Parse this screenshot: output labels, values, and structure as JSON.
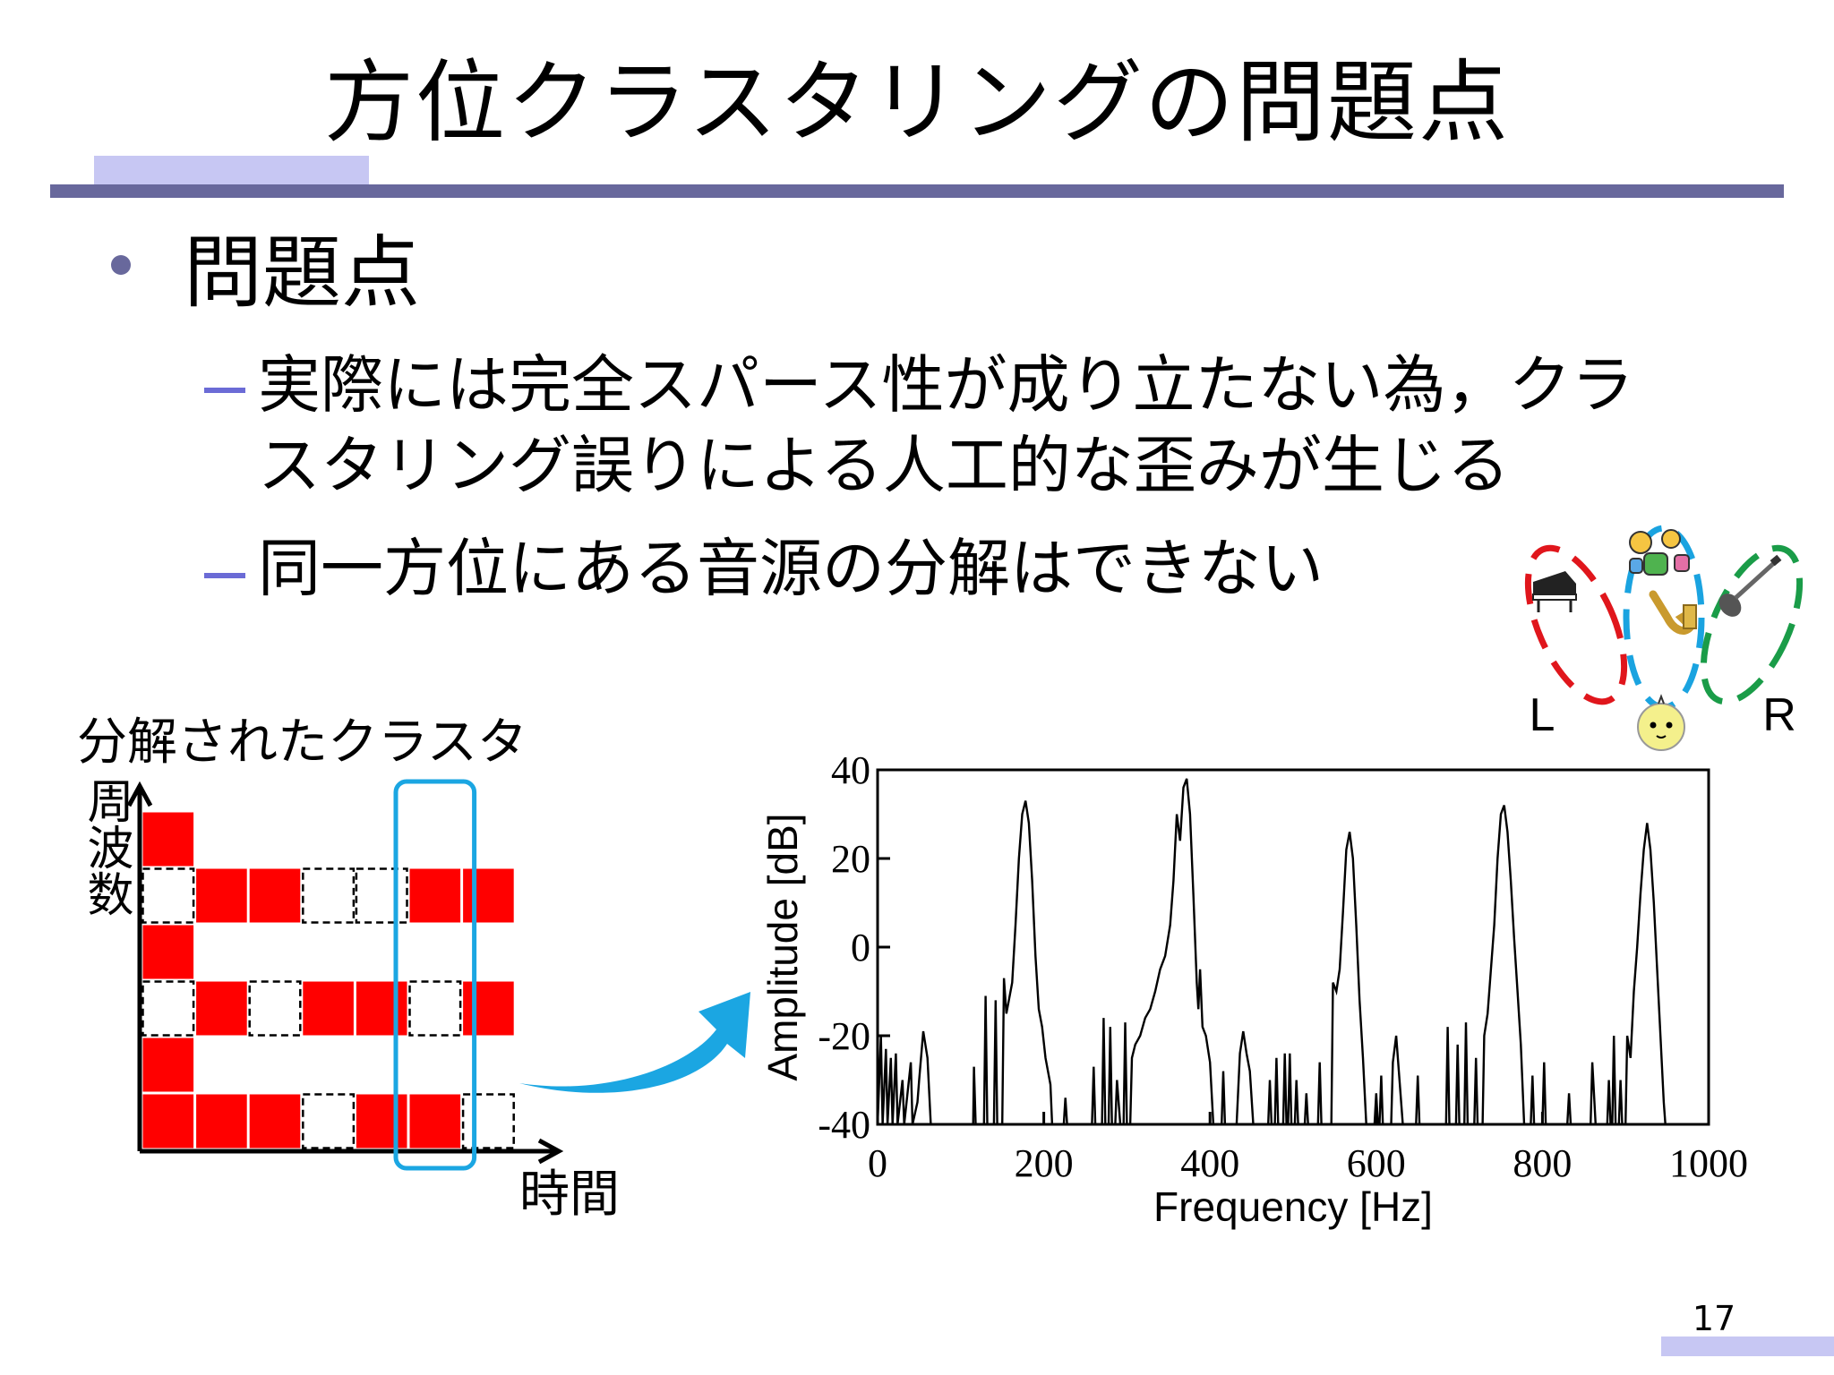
{
  "slide": {
    "title": "方位クラスタリングの問題点",
    "bullet": "問題点",
    "sub_items": [
      {
        "line1": "実際には完全スパース性が成り立たない為，クラ",
        "line2": "スタリング誤りによる人工的な歪みが生じる"
      },
      {
        "line1": "同一方位にある音源の分解はできない"
      }
    ],
    "page_number": "17"
  },
  "cluster_figure": {
    "title": "分解されたクラスタ",
    "y_label": "周波数",
    "x_label": "時間",
    "colors": {
      "filled": "#ff0000",
      "empty_border": "#000000",
      "highlight": "#1ba6e2"
    },
    "columns": 7,
    "rows": [
      [
        1,
        0,
        0,
        0,
        0,
        0,
        0
      ],
      [
        2,
        1,
        1,
        2,
        2,
        1,
        1
      ],
      [
        1,
        0,
        0,
        0,
        0,
        0,
        0
      ],
      [
        2,
        1,
        2,
        1,
        1,
        2,
        1
      ],
      [
        1,
        0,
        0,
        0,
        0,
        0,
        0
      ],
      [
        1,
        1,
        1,
        2,
        1,
        1,
        2
      ]
    ],
    "highlight_column": 5
  },
  "arrow": {
    "color": "#1ba6e2"
  },
  "instruments_figure": {
    "left_label": "L",
    "right_label": "R",
    "icons": [
      "piano-icon",
      "drums-icon",
      "saxophone-icon",
      "guitar-icon",
      "listener-icon"
    ],
    "colors": {
      "left": "#e0161c",
      "center": "#1aa3e0",
      "right": "#1a9c48",
      "listener": "#f4f08c"
    }
  },
  "chart_data": {
    "type": "line",
    "title": "",
    "xlabel": "Frequency [Hz]",
    "ylabel": "Amplitude [dB]",
    "xlim": [
      0,
      1000
    ],
    "ylim": [
      -40,
      40
    ],
    "xticks": [
      "0",
      "200",
      "400",
      "600",
      "800",
      "1000"
    ],
    "yticks": [
      "40",
      "20",
      "0",
      "-20",
      "-40"
    ],
    "grid": false,
    "series": [
      {
        "values": [
          {
            "x": 0,
            "y": -40
          },
          {
            "x": 4,
            "y": -20
          },
          {
            "x": 6,
            "y": -40
          },
          {
            "x": 10,
            "y": -23
          },
          {
            "x": 12,
            "y": -40
          },
          {
            "x": 16,
            "y": -25
          },
          {
            "x": 18,
            "y": -40
          },
          {
            "x": 22,
            "y": -24
          },
          {
            "x": 24,
            "y": -40
          },
          {
            "x": 30,
            "y": -30
          },
          {
            "x": 32,
            "y": -40
          },
          {
            "x": 40,
            "y": -26
          },
          {
            "x": 42,
            "y": -40
          },
          {
            "x": 48,
            "y": -35
          },
          {
            "x": 50,
            "y": -30
          },
          {
            "x": 55,
            "y": -19
          },
          {
            "x": 60,
            "y": -25
          },
          {
            "x": 64,
            "y": -40
          },
          {
            "x": 115,
            "y": -40
          },
          {
            "x": 116,
            "y": -27
          },
          {
            "x": 118,
            "y": -40
          },
          {
            "x": 128,
            "y": -40
          },
          {
            "x": 130,
            "y": -11
          },
          {
            "x": 132,
            "y": -40
          },
          {
            "x": 140,
            "y": -40
          },
          {
            "x": 142,
            "y": -12
          },
          {
            "x": 144,
            "y": -40
          },
          {
            "x": 150,
            "y": -40
          },
          {
            "x": 152,
            "y": -7
          },
          {
            "x": 155,
            "y": -15
          },
          {
            "x": 162,
            "y": -8
          },
          {
            "x": 166,
            "y": 5
          },
          {
            "x": 170,
            "y": 20
          },
          {
            "x": 174,
            "y": 30
          },
          {
            "x": 178,
            "y": 33
          },
          {
            "x": 182,
            "y": 28
          },
          {
            "x": 186,
            "y": 15
          },
          {
            "x": 190,
            "y": -2
          },
          {
            "x": 194,
            "y": -14
          },
          {
            "x": 198,
            "y": -18
          },
          {
            "x": 202,
            "y": -25
          },
          {
            "x": 208,
            "y": -31
          },
          {
            "x": 210,
            "y": -40
          },
          {
            "x": 224,
            "y": -40
          },
          {
            "x": 226,
            "y": -34
          },
          {
            "x": 228,
            "y": -40
          },
          {
            "x": 258,
            "y": -40
          },
          {
            "x": 260,
            "y": -27
          },
          {
            "x": 262,
            "y": -40
          },
          {
            "x": 270,
            "y": -40
          },
          {
            "x": 272,
            "y": -16
          },
          {
            "x": 274,
            "y": -40
          },
          {
            "x": 278,
            "y": -40
          },
          {
            "x": 280,
            "y": -18
          },
          {
            "x": 282,
            "y": -40
          },
          {
            "x": 286,
            "y": -40
          },
          {
            "x": 288,
            "y": -30
          },
          {
            "x": 292,
            "y": -40
          },
          {
            "x": 296,
            "y": -40
          },
          {
            "x": 298,
            "y": -17
          },
          {
            "x": 300,
            "y": -40
          },
          {
            "x": 304,
            "y": -40
          },
          {
            "x": 306,
            "y": -25
          },
          {
            "x": 310,
            "y": -22
          },
          {
            "x": 316,
            "y": -20
          },
          {
            "x": 322,
            "y": -16
          },
          {
            "x": 328,
            "y": -14
          },
          {
            "x": 334,
            "y": -10
          },
          {
            "x": 340,
            "y": -5
          },
          {
            "x": 346,
            "y": -2
          },
          {
            "x": 352,
            "y": 5
          },
          {
            "x": 356,
            "y": 15
          },
          {
            "x": 360,
            "y": 30
          },
          {
            "x": 364,
            "y": 24
          },
          {
            "x": 368,
            "y": 36
          },
          {
            "x": 372,
            "y": 38
          },
          {
            "x": 376,
            "y": 30
          },
          {
            "x": 380,
            "y": 12
          },
          {
            "x": 384,
            "y": -8
          },
          {
            "x": 386,
            "y": -14
          },
          {
            "x": 388,
            "y": -5
          },
          {
            "x": 391,
            "y": -18
          },
          {
            "x": 395,
            "y": -20
          },
          {
            "x": 400,
            "y": -26
          },
          {
            "x": 404,
            "y": -40
          },
          {
            "x": 414,
            "y": -40
          },
          {
            "x": 416,
            "y": -28
          },
          {
            "x": 418,
            "y": -40
          },
          {
            "x": 432,
            "y": -40
          },
          {
            "x": 436,
            "y": -24
          },
          {
            "x": 440,
            "y": -19
          },
          {
            "x": 444,
            "y": -24
          },
          {
            "x": 448,
            "y": -28
          },
          {
            "x": 452,
            "y": -40
          },
          {
            "x": 470,
            "y": -40
          },
          {
            "x": 472,
            "y": -30
          },
          {
            "x": 474,
            "y": -40
          },
          {
            "x": 478,
            "y": -40
          },
          {
            "x": 480,
            "y": -25
          },
          {
            "x": 482,
            "y": -40
          },
          {
            "x": 488,
            "y": -40
          },
          {
            "x": 490,
            "y": -24
          },
          {
            "x": 492,
            "y": -40
          },
          {
            "x": 494,
            "y": -40
          },
          {
            "x": 496,
            "y": -24
          },
          {
            "x": 498,
            "y": -40
          },
          {
            "x": 502,
            "y": -40
          },
          {
            "x": 504,
            "y": -30
          },
          {
            "x": 506,
            "y": -40
          },
          {
            "x": 514,
            "y": -40
          },
          {
            "x": 516,
            "y": -33
          },
          {
            "x": 518,
            "y": -40
          },
          {
            "x": 530,
            "y": -40
          },
          {
            "x": 532,
            "y": -26
          },
          {
            "x": 534,
            "y": -40
          },
          {
            "x": 546,
            "y": -40
          },
          {
            "x": 548,
            "y": -8
          },
          {
            "x": 552,
            "y": -10
          },
          {
            "x": 556,
            "y": -5
          },
          {
            "x": 560,
            "y": 8
          },
          {
            "x": 564,
            "y": 22
          },
          {
            "x": 568,
            "y": 26
          },
          {
            "x": 572,
            "y": 20
          },
          {
            "x": 576,
            "y": 5
          },
          {
            "x": 580,
            "y": -12
          },
          {
            "x": 584,
            "y": -25
          },
          {
            "x": 588,
            "y": -40
          },
          {
            "x": 598,
            "y": -40
          },
          {
            "x": 600,
            "y": -33
          },
          {
            "x": 602,
            "y": -40
          },
          {
            "x": 604,
            "y": -40
          },
          {
            "x": 606,
            "y": -29
          },
          {
            "x": 608,
            "y": -40
          },
          {
            "x": 618,
            "y": -40
          },
          {
            "x": 620,
            "y": -26
          },
          {
            "x": 624,
            "y": -20
          },
          {
            "x": 628,
            "y": -30
          },
          {
            "x": 632,
            "y": -40
          },
          {
            "x": 648,
            "y": -40
          },
          {
            "x": 650,
            "y": -29
          },
          {
            "x": 652,
            "y": -40
          },
          {
            "x": 684,
            "y": -40
          },
          {
            "x": 686,
            "y": -18
          },
          {
            "x": 688,
            "y": -40
          },
          {
            "x": 696,
            "y": -40
          },
          {
            "x": 698,
            "y": -22
          },
          {
            "x": 700,
            "y": -40
          },
          {
            "x": 706,
            "y": -40
          },
          {
            "x": 708,
            "y": -17
          },
          {
            "x": 710,
            "y": -40
          },
          {
            "x": 718,
            "y": -40
          },
          {
            "x": 720,
            "y": -25
          },
          {
            "x": 722,
            "y": -40
          },
          {
            "x": 728,
            "y": -40
          },
          {
            "x": 730,
            "y": -20
          },
          {
            "x": 734,
            "y": -15
          },
          {
            "x": 738,
            "y": -5
          },
          {
            "x": 742,
            "y": 5
          },
          {
            "x": 746,
            "y": 20
          },
          {
            "x": 750,
            "y": 30
          },
          {
            "x": 754,
            "y": 32
          },
          {
            "x": 758,
            "y": 26
          },
          {
            "x": 762,
            "y": 15
          },
          {
            "x": 766,
            "y": 2
          },
          {
            "x": 770,
            "y": -10
          },
          {
            "x": 774,
            "y": -22
          },
          {
            "x": 778,
            "y": -40
          },
          {
            "x": 786,
            "y": -40
          },
          {
            "x": 788,
            "y": -29
          },
          {
            "x": 790,
            "y": -40
          },
          {
            "x": 800,
            "y": -40
          },
          {
            "x": 802,
            "y": -26
          },
          {
            "x": 804,
            "y": -40
          },
          {
            "x": 830,
            "y": -40
          },
          {
            "x": 832,
            "y": -33
          },
          {
            "x": 834,
            "y": -40
          },
          {
            "x": 858,
            "y": -40
          },
          {
            "x": 860,
            "y": -26
          },
          {
            "x": 864,
            "y": -40
          },
          {
            "x": 878,
            "y": -40
          },
          {
            "x": 880,
            "y": -30
          },
          {
            "x": 882,
            "y": -40
          },
          {
            "x": 884,
            "y": -40
          },
          {
            "x": 886,
            "y": -20
          },
          {
            "x": 888,
            "y": -40
          },
          {
            "x": 892,
            "y": -40
          },
          {
            "x": 894,
            "y": -30
          },
          {
            "x": 896,
            "y": -40
          },
          {
            "x": 900,
            "y": -40
          },
          {
            "x": 902,
            "y": -20
          },
          {
            "x": 906,
            "y": -25
          },
          {
            "x": 910,
            "y": -10
          },
          {
            "x": 914,
            "y": 0
          },
          {
            "x": 918,
            "y": 12
          },
          {
            "x": 922,
            "y": 22
          },
          {
            "x": 926,
            "y": 28
          },
          {
            "x": 930,
            "y": 22
          },
          {
            "x": 934,
            "y": 10
          },
          {
            "x": 938,
            "y": -5
          },
          {
            "x": 942,
            "y": -20
          },
          {
            "x": 946,
            "y": -35
          },
          {
            "x": 948,
            "y": -40
          }
        ]
      }
    ]
  }
}
